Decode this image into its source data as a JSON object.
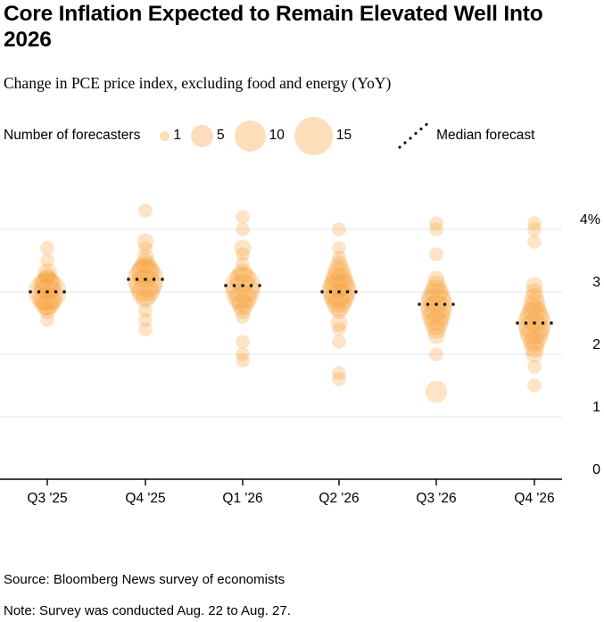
{
  "header": {
    "title": "Core Inflation Expected to Remain Elevated Well Into 2026",
    "subtitle": "Change in PCE price index, excluding food and energy (YoY)"
  },
  "legend": {
    "bubbles_label": "Number of forecasters",
    "sizes": [
      1,
      5,
      10,
      15
    ],
    "median_label": "Median forecast"
  },
  "colors": {
    "bubble": "#F6921E",
    "bubble_opacity": 0.25,
    "grid": "#E5E5E5",
    "axis": "#000000",
    "median_dot": "#111111",
    "text": "#000000"
  },
  "chart_data": {
    "type": "scatter",
    "subtype": "bubble-distribution",
    "title": "Core Inflation Expected to Remain Elevated Well Into 2026",
    "xlabel": "",
    "ylabel": "Change in PCE price index, excluding food and energy (YoY)",
    "grid": "horizontal",
    "legend_position": "top",
    "categories": [
      "Q3 '25",
      "Q4 '25",
      "Q1 '26",
      "Q2 '26",
      "Q3 '26",
      "Q4 '26"
    ],
    "ylim": [
      0,
      4.6
    ],
    "y_ticks": [
      {
        "value": 4,
        "label": "4%"
      },
      {
        "value": 3,
        "label": "3"
      },
      {
        "value": 2,
        "label": "2"
      },
      {
        "value": 1,
        "label": "1"
      },
      {
        "value": 0,
        "label": "0"
      }
    ],
    "median_series_name": "Median forecast",
    "medians": [
      3.0,
      3.2,
      3.1,
      3.0,
      2.8,
      2.5
    ],
    "series": [
      {
        "name": "Q3 '25",
        "median": 3.0,
        "bubbles": [
          {
            "value": 3.7,
            "forecasters": 2
          },
          {
            "value": 3.5,
            "forecasters": 2
          },
          {
            "value": 3.3,
            "forecasters": 4
          },
          {
            "value": 3.25,
            "forecasters": 3
          },
          {
            "value": 3.15,
            "forecasters": 6
          },
          {
            "value": 3.1,
            "forecasters": 8
          },
          {
            "value": 3.0,
            "forecasters": 15
          },
          {
            "value": 2.95,
            "forecasters": 10
          },
          {
            "value": 2.85,
            "forecasters": 8
          },
          {
            "value": 2.8,
            "forecasters": 5
          },
          {
            "value": 2.7,
            "forecasters": 3
          },
          {
            "value": 2.55,
            "forecasters": 2
          }
        ]
      },
      {
        "name": "Q4 '25",
        "median": 3.2,
        "bubbles": [
          {
            "value": 4.3,
            "forecasters": 2
          },
          {
            "value": 3.8,
            "forecasters": 3
          },
          {
            "value": 3.7,
            "forecasters": 2
          },
          {
            "value": 3.55,
            "forecasters": 3
          },
          {
            "value": 3.45,
            "forecasters": 4
          },
          {
            "value": 3.35,
            "forecasters": 7
          },
          {
            "value": 3.3,
            "forecasters": 9
          },
          {
            "value": 3.2,
            "forecasters": 14
          },
          {
            "value": 3.1,
            "forecasters": 11
          },
          {
            "value": 3.0,
            "forecasters": 8
          },
          {
            "value": 2.9,
            "forecasters": 4
          },
          {
            "value": 2.7,
            "forecasters": 2
          },
          {
            "value": 2.55,
            "forecasters": 2
          },
          {
            "value": 2.4,
            "forecasters": 2
          }
        ]
      },
      {
        "name": "Q1 '26",
        "median": 3.1,
        "bubbles": [
          {
            "value": 4.2,
            "forecasters": 2
          },
          {
            "value": 4.0,
            "forecasters": 2
          },
          {
            "value": 3.7,
            "forecasters": 3
          },
          {
            "value": 3.6,
            "forecasters": 2
          },
          {
            "value": 3.45,
            "forecasters": 2
          },
          {
            "value": 3.3,
            "forecasters": 4
          },
          {
            "value": 3.2,
            "forecasters": 7
          },
          {
            "value": 3.1,
            "forecasters": 13
          },
          {
            "value": 3.0,
            "forecasters": 12
          },
          {
            "value": 2.9,
            "forecasters": 8
          },
          {
            "value": 2.8,
            "forecasters": 5
          },
          {
            "value": 2.7,
            "forecasters": 3
          },
          {
            "value": 2.6,
            "forecasters": 2
          },
          {
            "value": 2.2,
            "forecasters": 2
          },
          {
            "value": 2.0,
            "forecasters": 2
          },
          {
            "value": 1.9,
            "forecasters": 2
          }
        ]
      },
      {
        "name": "Q2 '26",
        "median": 3.0,
        "bubbles": [
          {
            "value": 4.0,
            "forecasters": 2
          },
          {
            "value": 3.7,
            "forecasters": 2
          },
          {
            "value": 3.55,
            "forecasters": 2
          },
          {
            "value": 3.45,
            "forecasters": 3
          },
          {
            "value": 3.35,
            "forecasters": 5
          },
          {
            "value": 3.25,
            "forecasters": 7
          },
          {
            "value": 3.15,
            "forecasters": 9
          },
          {
            "value": 3.05,
            "forecasters": 12
          },
          {
            "value": 3.0,
            "forecasters": 12
          },
          {
            "value": 2.9,
            "forecasters": 9
          },
          {
            "value": 2.8,
            "forecasters": 6
          },
          {
            "value": 2.7,
            "forecasters": 3
          },
          {
            "value": 2.5,
            "forecasters": 3
          },
          {
            "value": 2.4,
            "forecasters": 2
          },
          {
            "value": 2.2,
            "forecasters": 2
          },
          {
            "value": 1.7,
            "forecasters": 2
          },
          {
            "value": 1.6,
            "forecasters": 2
          }
        ]
      },
      {
        "name": "Q3 '26",
        "median": 2.8,
        "bubbles": [
          {
            "value": 4.1,
            "forecasters": 2
          },
          {
            "value": 4.0,
            "forecasters": 2
          },
          {
            "value": 3.6,
            "forecasters": 2
          },
          {
            "value": 3.2,
            "forecasters": 3
          },
          {
            "value": 3.1,
            "forecasters": 4
          },
          {
            "value": 3.0,
            "forecasters": 6
          },
          {
            "value": 2.9,
            "forecasters": 9
          },
          {
            "value": 2.8,
            "forecasters": 11
          },
          {
            "value": 2.7,
            "forecasters": 10
          },
          {
            "value": 2.6,
            "forecasters": 8
          },
          {
            "value": 2.5,
            "forecasters": 6
          },
          {
            "value": 2.4,
            "forecasters": 4
          },
          {
            "value": 2.3,
            "forecasters": 3
          },
          {
            "value": 2.0,
            "forecasters": 2
          },
          {
            "value": 1.4,
            "forecasters": 5
          }
        ]
      },
      {
        "name": "Q4 '26",
        "median": 2.5,
        "bubbles": [
          {
            "value": 4.1,
            "forecasters": 2
          },
          {
            "value": 4.0,
            "forecasters": 2
          },
          {
            "value": 3.8,
            "forecasters": 2
          },
          {
            "value": 3.1,
            "forecasters": 3
          },
          {
            "value": 3.0,
            "forecasters": 3
          },
          {
            "value": 2.9,
            "forecasters": 4
          },
          {
            "value": 2.8,
            "forecasters": 5
          },
          {
            "value": 2.7,
            "forecasters": 6
          },
          {
            "value": 2.6,
            "forecasters": 9
          },
          {
            "value": 2.5,
            "forecasters": 12
          },
          {
            "value": 2.4,
            "forecasters": 10
          },
          {
            "value": 2.3,
            "forecasters": 8
          },
          {
            "value": 2.2,
            "forecasters": 5
          },
          {
            "value": 2.1,
            "forecasters": 4
          },
          {
            "value": 2.0,
            "forecasters": 3
          },
          {
            "value": 1.8,
            "forecasters": 2
          },
          {
            "value": 1.5,
            "forecasters": 2
          }
        ]
      }
    ]
  },
  "footer": {
    "source": "Source: Bloomberg News survey of economists",
    "note": "Note: Survey was conducted Aug. 22 to Aug. 27."
  }
}
